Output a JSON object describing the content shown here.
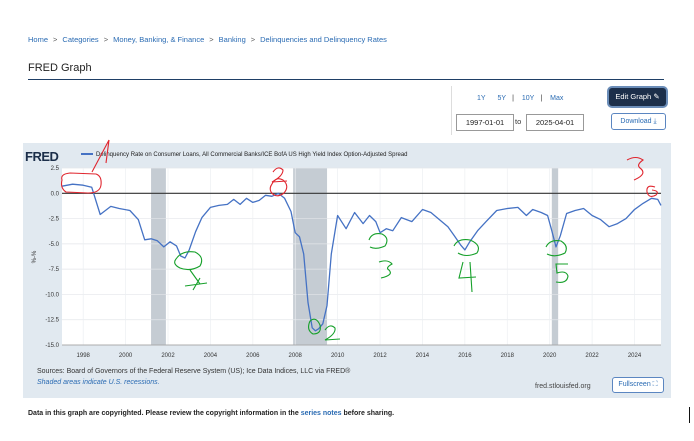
{
  "breadcrumb": {
    "items": [
      "Home",
      "Categories",
      "Money, Banking, & Finance",
      "Banking",
      "Delinquencies and Delinquency Rates"
    ],
    "separator": ">"
  },
  "page_title": "FRED Graph",
  "range_selector": {
    "links": [
      "1Y",
      "5Y",
      "10Y",
      "Max"
    ],
    "start_date": "1997-01-01",
    "to_label": "to",
    "end_date": "2025-04-01"
  },
  "buttons": {
    "edit_graph": "Edit Graph",
    "download": "Download",
    "fullscreen": "Fullscreen"
  },
  "graph": {
    "logo": "FRED",
    "legend_label": "Delinquency Rate on Consumer Loans, All Commercial Banks/ICE BofA US High Yield Index Option-Adjusted Spread",
    "sources": "Sources: Board of Governors of the Federal Reserve System (US); Ice Data Indices, LLC via FRED®",
    "shaded_note": "Shaded areas indicate U.S. recessions.",
    "url": "fred.stlouisfed.org"
  },
  "copyright": {
    "before": "Data in this graph are copyrighted. Please review the copyright information in the",
    "link": "series notes",
    "after": "before sharing."
  },
  "annotations": {
    "numbers": [
      "1",
      "2",
      "3",
      "4",
      "5",
      "2",
      "3",
      "6"
    ]
  },
  "colors": {
    "line": "#4572c4",
    "zero_line": "#333333",
    "recession": "#c5ccd3",
    "annotation": "#e0262f",
    "annotation_green": "#16a02a",
    "panel_bg": "#e1e9f0"
  },
  "chart_data": {
    "type": "line",
    "title": "",
    "xlabel": "",
    "ylabel": "%-%",
    "xlim": [
      1997.0,
      2025.25
    ],
    "ylim": [
      -15.0,
      2.5
    ],
    "yticks": [
      2.5,
      0.0,
      -2.5,
      -5.0,
      -7.5,
      -10.0,
      -12.5,
      -15.0
    ],
    "ytick_labels": [
      "2.5",
      "0.0",
      "-2.5",
      "-5.0",
      "-7.5",
      "-10.0",
      "-12.5",
      "-15.0"
    ],
    "xticks": [
      1998,
      2000,
      2002,
      2004,
      2006,
      2008,
      2010,
      2012,
      2014,
      2016,
      2018,
      2020,
      2022,
      2024
    ],
    "recessions": [
      [
        2001.2,
        2001.9
      ],
      [
        2007.9,
        2009.5
      ],
      [
        2020.1,
        2020.4
      ]
    ],
    "reference_line": 0.0,
    "series": [
      {
        "name": "Delinquency Rate on Consumer Loans, All Commercial Banks/ICE BofA US High Yield Index Option-Adjusted Spread",
        "x": [
          1997.0,
          1997.5,
          1998.0,
          1998.4,
          1998.8,
          1999.3,
          1999.7,
          2000.2,
          2000.6,
          2000.9,
          2001.2,
          2001.5,
          2001.8,
          2002.1,
          2002.4,
          2002.6,
          2002.8,
          2003.0,
          2003.3,
          2003.6,
          2004.0,
          2004.4,
          2004.8,
          2005.1,
          2005.4,
          2005.7,
          2006.0,
          2006.3,
          2006.6,
          2006.9,
          2007.2,
          2007.5,
          2007.8,
          2008.0,
          2008.2,
          2008.4,
          2008.6,
          2008.8,
          2008.95,
          2009.1,
          2009.3,
          2009.5,
          2009.7,
          2010.0,
          2010.4,
          2010.8,
          2011.2,
          2011.5,
          2011.8,
          2012.0,
          2012.3,
          2012.6,
          2013.0,
          2013.5,
          2014.0,
          2014.4,
          2014.8,
          2015.2,
          2015.5,
          2015.8,
          2016.0,
          2016.2,
          2016.6,
          2017.0,
          2017.5,
          2018.0,
          2018.5,
          2018.9,
          2019.2,
          2019.6,
          2019.9,
          2020.1,
          2020.3,
          2020.5,
          2020.8,
          2021.2,
          2021.6,
          2022.0,
          2022.4,
          2022.8,
          2023.2,
          2023.6,
          2024.0,
          2024.4,
          2024.8,
          2025.1,
          2025.25
        ],
        "y": [
          0.7,
          0.9,
          0.8,
          0.6,
          -2.1,
          -1.3,
          -1.5,
          -1.7,
          -2.6,
          -4.6,
          -4.5,
          -4.7,
          -5.3,
          -4.8,
          -5.2,
          -6.2,
          -6.4,
          -5.6,
          -3.8,
          -2.4,
          -1.4,
          -1.2,
          -1.1,
          -0.6,
          -1.1,
          -0.5,
          -0.9,
          -0.7,
          -0.2,
          -0.3,
          0.0,
          -0.5,
          -1.8,
          -3.9,
          -4.3,
          -6.0,
          -10.8,
          -13.3,
          -13.6,
          -13.4,
          -12.9,
          -11.1,
          -6.0,
          -2.2,
          -3.5,
          -1.9,
          -3.0,
          -2.2,
          -2.8,
          -3.9,
          -3.5,
          -3.7,
          -2.4,
          -2.8,
          -1.6,
          -1.9,
          -2.6,
          -3.3,
          -4.2,
          -5.1,
          -5.6,
          -4.9,
          -3.7,
          -2.8,
          -1.7,
          -1.5,
          -1.4,
          -2.2,
          -1.6,
          -1.9,
          -2.2,
          -3.7,
          -5.3,
          -4.2,
          -2.0,
          -1.7,
          -1.5,
          -2.2,
          -2.6,
          -3.3,
          -3.0,
          -2.5,
          -1.6,
          -1.0,
          -0.5,
          -0.6,
          -1.2
        ]
      }
    ],
    "legend_position": "top-left",
    "grid": true
  }
}
